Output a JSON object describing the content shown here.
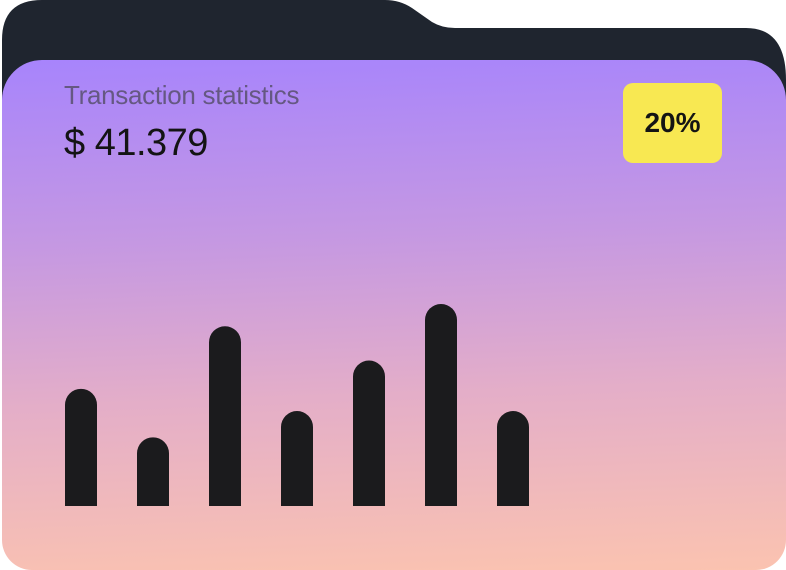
{
  "card": {
    "title": "Transaction statistics",
    "amount": "$ 41.379",
    "badge": "20%"
  },
  "colors": {
    "folder_back": "#1f252f",
    "badge": "#f8e852",
    "bars": "#1b1b1d",
    "gradient_top": "#a784fc",
    "gradient_bottom": "#fbc3b0"
  },
  "chart_data": {
    "type": "bar",
    "values": [
      58,
      34,
      89,
      47,
      72,
      100,
      47
    ],
    "ylim": [
      0,
      100
    ],
    "grid": false
  }
}
